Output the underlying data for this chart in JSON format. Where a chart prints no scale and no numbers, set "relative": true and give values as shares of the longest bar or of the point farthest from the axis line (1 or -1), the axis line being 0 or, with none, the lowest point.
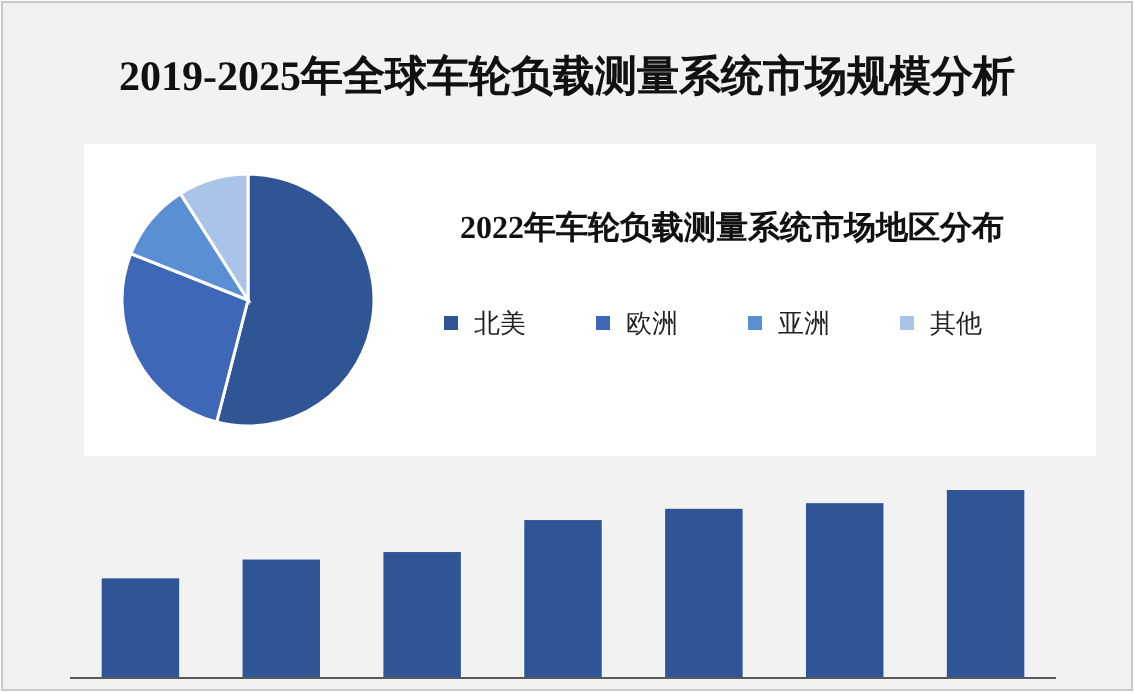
{
  "chart_data": [
    {
      "type": "bar",
      "title": "2019-2025年全球车轮负载测量系统市场规模分析",
      "categories": [
        null,
        null,
        null,
        null,
        null,
        null,
        null
      ],
      "values": [
        0.53,
        0.63,
        0.67,
        0.84,
        0.9,
        0.93,
        1
      ],
      "color": "#2f5597",
      "relative": true
    },
    {
      "type": "pie",
      "title": "2022年车轮负载测量系统市场地区分布",
      "categories": [
        "北美",
        "欧洲",
        "亚洲",
        "其他"
      ],
      "values": [
        54,
        27,
        10,
        9
      ],
      "colors": [
        "#2f5597",
        "#3f67b8",
        "#5b8fd4",
        "#a9c4e8"
      ],
      "legend": "right"
    }
  ]
}
